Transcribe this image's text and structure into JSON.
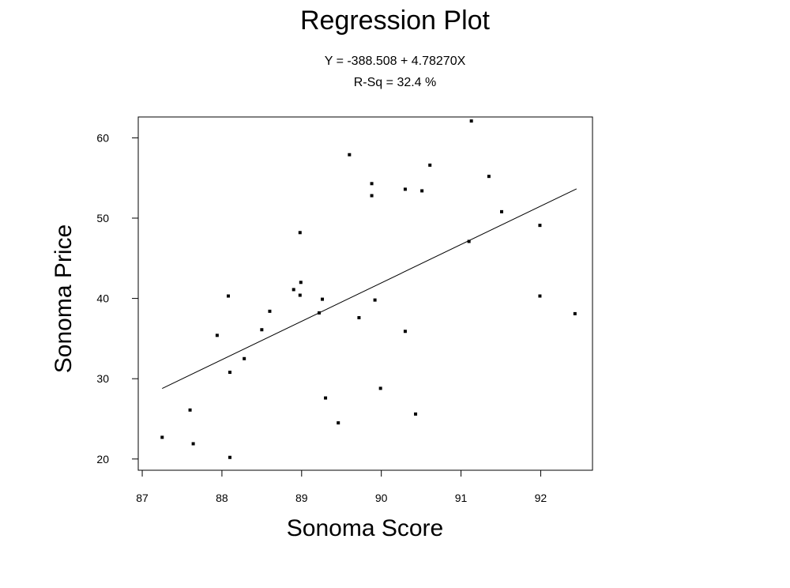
{
  "chart_data": {
    "type": "scatter",
    "title": "Regression Plot",
    "subtitle_lines": [
      "Y = -388.508 + 4.78270X",
      "R-Sq = 32.4 %"
    ],
    "xlabel": "Sonoma Score",
    "ylabel": "Sonoma Price",
    "xlim": [
      86.95,
      92.65
    ],
    "ylim": [
      18.6,
      62.6
    ],
    "xticks": [
      87,
      88,
      89,
      90,
      91,
      92
    ],
    "yticks": [
      20,
      30,
      40,
      50,
      60
    ],
    "grid": false,
    "legend": "none",
    "points": [
      {
        "x": 87.25,
        "y": 22.7
      },
      {
        "x": 87.6,
        "y": 26.1
      },
      {
        "x": 87.64,
        "y": 21.9
      },
      {
        "x": 87.94,
        "y": 35.4
      },
      {
        "x": 88.08,
        "y": 40.3
      },
      {
        "x": 88.1,
        "y": 30.8
      },
      {
        "x": 88.1,
        "y": 20.2
      },
      {
        "x": 88.28,
        "y": 32.5
      },
      {
        "x": 88.5,
        "y": 36.1
      },
      {
        "x": 88.6,
        "y": 38.4
      },
      {
        "x": 88.9,
        "y": 41.1
      },
      {
        "x": 88.98,
        "y": 48.2
      },
      {
        "x": 88.99,
        "y": 42.0
      },
      {
        "x": 88.98,
        "y": 40.4
      },
      {
        "x": 89.22,
        "y": 38.2
      },
      {
        "x": 89.26,
        "y": 39.9
      },
      {
        "x": 89.3,
        "y": 27.6
      },
      {
        "x": 89.46,
        "y": 24.5
      },
      {
        "x": 89.6,
        "y": 57.9
      },
      {
        "x": 89.72,
        "y": 37.6
      },
      {
        "x": 89.88,
        "y": 54.3
      },
      {
        "x": 89.88,
        "y": 52.8
      },
      {
        "x": 89.92,
        "y": 39.8
      },
      {
        "x": 89.99,
        "y": 28.8
      },
      {
        "x": 90.3,
        "y": 53.6
      },
      {
        "x": 90.3,
        "y": 35.9
      },
      {
        "x": 90.43,
        "y": 25.6
      },
      {
        "x": 90.51,
        "y": 53.4
      },
      {
        "x": 90.61,
        "y": 56.6
      },
      {
        "x": 91.1,
        "y": 47.1
      },
      {
        "x": 91.13,
        "y": 62.1
      },
      {
        "x": 91.35,
        "y": 55.2
      },
      {
        "x": 91.51,
        "y": 50.8
      },
      {
        "x": 91.99,
        "y": 49.1
      },
      {
        "x": 91.99,
        "y": 40.3
      },
      {
        "x": 92.43,
        "y": 38.1
      }
    ],
    "fit_line": {
      "x": [
        87.25,
        92.45
      ]
    },
    "colors": {
      "points": "#000000",
      "line": "#000000",
      "axes": "#000000",
      "background": "#ffffff"
    }
  }
}
